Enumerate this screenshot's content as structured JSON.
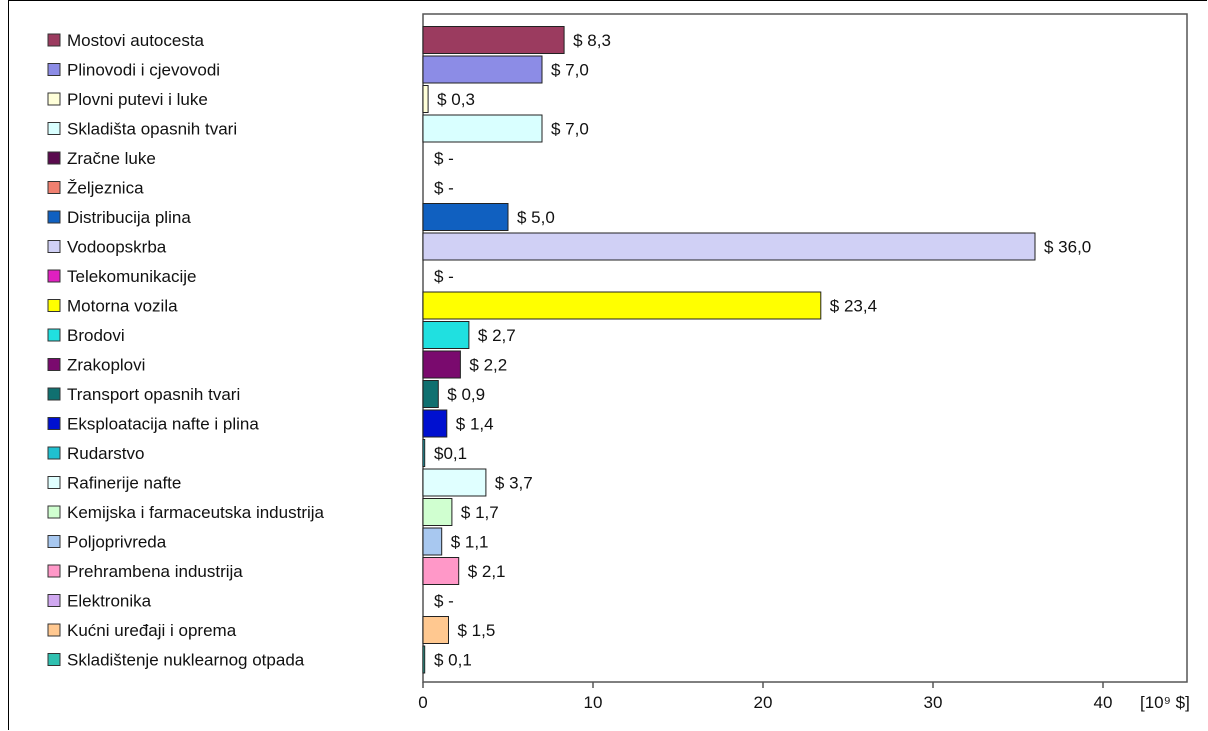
{
  "chart_data": {
    "type": "bar",
    "orientation": "horizontal",
    "categories": [
      "Mostovi autocesta",
      "Plinovodi i cjevovodi",
      "Plovni putevi i luke",
      "Skladišta opasnih tvari",
      "Zračne luke",
      "Željeznica",
      "Distribucija plina",
      "Vodoopskrba",
      "Telekomunikacije",
      "Motorna vozila",
      "Brodovi",
      "Zrakoplovi",
      "Transport opasnih tvari",
      "Eksploatacija nafte i plina",
      "Rudarstvo",
      "Rafinerije nafte",
      "Kemijska i farmaceutska industrija",
      "Poljoprivreda",
      "Prehrambena industrija",
      "Elektronika",
      "Kućni uređaji i oprema",
      "Skladištenje nuklearnog otpada"
    ],
    "values": [
      8.3,
      7.0,
      0.3,
      7.0,
      0,
      0,
      5.0,
      36.0,
      0,
      23.4,
      2.7,
      2.2,
      0.9,
      1.4,
      0.1,
      3.7,
      1.7,
      1.1,
      2.1,
      0,
      1.5,
      0.1
    ],
    "value_labels": [
      "$ 8,3",
      "$ 7,0",
      "$ 0,3",
      "$ 7,0",
      "$ -",
      "$ -",
      "$ 5,0",
      "$ 36,0",
      "$ -",
      "$ 23,4",
      "$ 2,7",
      "$ 2,2",
      "$ 0,9",
      "$ 1,4",
      "$0,1",
      "$ 3,7",
      "$ 1,7",
      "$ 1,1",
      "$ 2,1",
      "$ -",
      "$ 1,5",
      "$ 0,1"
    ],
    "colors": [
      "#9B3B5F",
      "#8C8CE6",
      "#FFFFD9",
      "#D9FFFF",
      "#5A0A4E",
      "#F08070",
      "#1060C0",
      "#D0D0F5",
      "#E020C0",
      "#FFFF00",
      "#20E0E0",
      "#7A0A6E",
      "#107070",
      "#0010D0",
      "#20C0D0",
      "#E0FFFF",
      "#D0FFD0",
      "#A8C8F0",
      "#FF98C8",
      "#D0A8F0",
      "#FFC890",
      "#30C0B0"
    ],
    "x_ticks": [
      "0",
      "10",
      "20",
      "30",
      "40"
    ],
    "xlim": [
      0,
      45
    ],
    "xlabel": "[10⁹ $]",
    "legend": "left",
    "grid": false
  }
}
